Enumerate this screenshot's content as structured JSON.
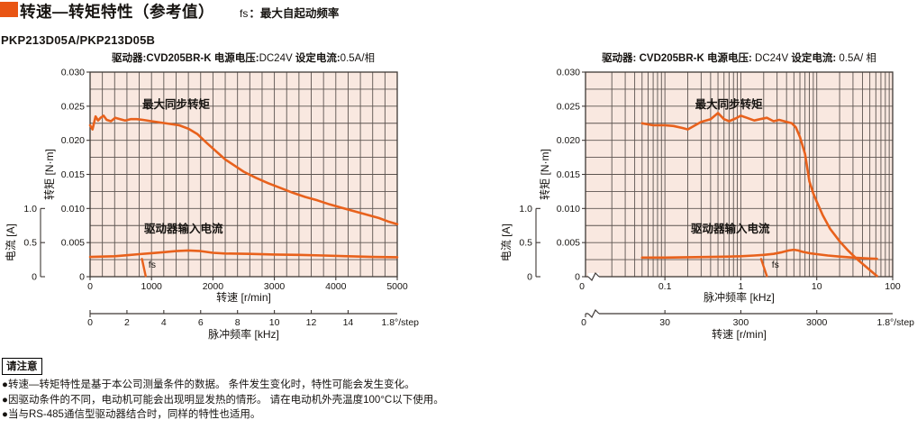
{
  "page": {
    "title": "转速—转矩特性（参考值）",
    "fs_abbr": "fs",
    "fs_note": "：最大自起动频率",
    "subtitle": "PKP213D05A/PKP213D05B",
    "accent_color": "#e95514",
    "curve_color": "#e8611c",
    "plot_bg": "#f9e8e0"
  },
  "notes": {
    "box_label": "请注意",
    "items": [
      "●转速—转矩特性是基于本公司测量条件的数据。 条件发生变化时，特性可能会发生变化。",
      "●因驱动条件的不同，电动机可能会出现明显发热的情形。 请在电动机外壳温度100°C以下使用。",
      "●当与RS-485通信型驱动器结合时，同样的特性也适用。"
    ]
  },
  "chart_data": [
    {
      "type": "line",
      "header": {
        "driver_label": "驱动器:",
        "driver": "CVD205BR-K",
        "voltage_label": " 电源电压:",
        "voltage": "DC24V",
        "current_label": " 设定电流:",
        "current": "0.5A/相"
      },
      "x_axis": {
        "label": "转速 [r/min]",
        "scale": "linear",
        "min": 0,
        "max": 5000,
        "minor_step": 200,
        "ticks": [
          0,
          1000,
          2000,
          3000,
          4000,
          5000
        ],
        "tick_labels": [
          "0",
          "1000",
          "2000",
          "3000",
          "4000",
          "5000"
        ]
      },
      "x2_axis": {
        "label": "脉冲频率 [kHz]",
        "ticks": [
          0,
          2,
          4,
          6,
          8,
          10,
          12,
          14
        ],
        "tick_labels": [
          "0",
          "2",
          "4",
          "6",
          "8",
          "10",
          "12",
          "14"
        ],
        "unit_note": "1.8°/step",
        "to_primary_factor": 300
      },
      "y_axis": {
        "label": "转矩 [N·m]",
        "min": 0,
        "max": 0.03,
        "minor_step": 0.0025,
        "ticks": [
          0,
          0.005,
          0.01,
          0.015,
          0.02,
          0.025,
          0.03
        ],
        "tick_labels": [
          "0",
          "0.005",
          "0.010",
          "0.015",
          "0.020",
          "0.025",
          "0.030"
        ]
      },
      "y2_axis": {
        "label": "电流 [A]",
        "max": 1.0,
        "maps_to_torque": 0.01,
        "ticks": [
          0,
          0.5,
          1.0
        ],
        "tick_labels": [
          "0",
          "0.5",
          "1.0"
        ]
      },
      "series": [
        {
          "name": "最大同步转矩",
          "axis": "y",
          "label_at": {
            "x": 850,
            "y": 0.0247
          },
          "x": [
            0,
            40,
            90,
            130,
            170,
            220,
            270,
            340,
            410,
            490,
            570,
            660,
            760,
            860,
            1000,
            1150,
            1300,
            1450,
            1600,
            1750,
            1900,
            2050,
            2200,
            2350,
            2500,
            2700,
            2900,
            3100,
            3300,
            3500,
            3700,
            3900,
            4100,
            4300,
            4500,
            4700,
            4850,
            5000
          ],
          "y": [
            0.0222,
            0.0216,
            0.0235,
            0.0229,
            0.0233,
            0.0236,
            0.023,
            0.0228,
            0.0233,
            0.0231,
            0.0229,
            0.0231,
            0.0231,
            0.023,
            0.0228,
            0.0226,
            0.0224,
            0.0222,
            0.0217,
            0.0209,
            0.0196,
            0.0184,
            0.0172,
            0.0163,
            0.0154,
            0.0145,
            0.0137,
            0.013,
            0.0123,
            0.0117,
            0.0112,
            0.0106,
            0.0101,
            0.0096,
            0.0091,
            0.0086,
            0.0081,
            0.0077
          ]
        },
        {
          "name": "驱动器输入电流",
          "axis": "y2",
          "label_at": {
            "x": 880,
            "y": 0.0065
          },
          "x": [
            0,
            200,
            400,
            600,
            800,
            1000,
            1200,
            1400,
            1600,
            1800,
            2000,
            2200,
            2600,
            3000,
            3400,
            3800,
            4200,
            4600,
            5000
          ],
          "y": [
            0.29,
            0.295,
            0.3,
            0.315,
            0.33,
            0.345,
            0.36,
            0.375,
            0.385,
            0.375,
            0.35,
            0.34,
            0.335,
            0.325,
            0.32,
            0.31,
            0.3,
            0.29,
            0.285
          ]
        }
      ],
      "fs_marker": {
        "label": "fs",
        "line": {
          "x": [
            845,
            905
          ],
          "y": [
            0.0026,
            0.0001
          ]
        },
        "label_at": {
          "x": 950,
          "y": 0.0013
        }
      }
    },
    {
      "type": "line",
      "header": {
        "driver_label": "驱动器: ",
        "driver": "CVD205BR-K",
        "voltage_label": " 电源电压: ",
        "voltage": "DC24V",
        "current_label": " 设定电流: ",
        "current": "0.5A/ 相"
      },
      "x_axis": {
        "label": "脉冲频率 [kHz]",
        "scale": "log",
        "min": 0.009,
        "max": 100,
        "grid_min": 0.02,
        "ticks": [
          0.1,
          1,
          10,
          100
        ],
        "tick_labels": [
          "0.1",
          "1",
          "10",
          "100"
        ],
        "zero_label": "0",
        "axis_break": true
      },
      "x2_axis": {
        "label": "转速 [r/min]",
        "ticks": [
          30,
          300,
          3000
        ],
        "tick_labels": [
          "30",
          "300",
          "3000"
        ],
        "zero_label": "0",
        "axis_break": true,
        "unit_note": "1.8°/step",
        "to_primary_factor": 0.0033333333
      },
      "y_axis": {
        "label": "转矩 [N·m]",
        "min": 0,
        "max": 0.03,
        "minor_step": 0.0025,
        "ticks": [
          0,
          0.005,
          0.01,
          0.015,
          0.02,
          0.025,
          0.03
        ],
        "tick_labels": [
          "0",
          "0.005",
          "0.010",
          "0.015",
          "0.020",
          "0.025",
          "0.030"
        ]
      },
      "y2_axis": {
        "label": "电流 [A]",
        "max": 1.0,
        "maps_to_torque": 0.01,
        "ticks": [
          0,
          0.5,
          1.0
        ],
        "tick_labels": [
          "0",
          "0.5",
          "1.0"
        ]
      },
      "series": [
        {
          "name": "最大同步转矩",
          "axis": "y",
          "label_at": {
            "x": 0.25,
            "y": 0.0247
          },
          "x": [
            0.05,
            0.07,
            0.1,
            0.13,
            0.17,
            0.2,
            0.25,
            0.3,
            0.4,
            0.5,
            0.6,
            0.7,
            0.85,
            1.0,
            1.2,
            1.5,
            1.8,
            2.2,
            2.7,
            3.2,
            4.0,
            4.7,
            5.3,
            6.0,
            7.0,
            8.0,
            9.0,
            10,
            12,
            15,
            20,
            26,
            33,
            42,
            52,
            62
          ],
          "y": [
            0.0225,
            0.0222,
            0.0222,
            0.0221,
            0.0218,
            0.0216,
            0.0222,
            0.0227,
            0.0231,
            0.024,
            0.0231,
            0.0228,
            0.0232,
            0.0236,
            0.0233,
            0.0229,
            0.0231,
            0.0233,
            0.0228,
            0.023,
            0.0227,
            0.0225,
            0.0219,
            0.0205,
            0.018,
            0.014,
            0.0122,
            0.011,
            0.009,
            0.007,
            0.0052,
            0.0038,
            0.0027,
            0.0017,
            0.0008,
            0.0001
          ]
        },
        {
          "name": "驱动器输入电流",
          "axis": "y2",
          "label_at": {
            "x": 0.22,
            "y": 0.0065
          },
          "x": [
            0.05,
            0.1,
            0.2,
            0.4,
            0.7,
            1.0,
            1.5,
            2.0,
            2.7,
            3.5,
            4.3,
            5.0,
            5.7,
            6.5,
            8.0,
            10,
            14,
            20,
            30,
            45,
            62
          ],
          "y": [
            0.28,
            0.28,
            0.285,
            0.29,
            0.295,
            0.3,
            0.31,
            0.32,
            0.335,
            0.36,
            0.385,
            0.395,
            0.385,
            0.365,
            0.345,
            0.33,
            0.31,
            0.295,
            0.28,
            0.268,
            0.262
          ]
        }
      ],
      "fs_marker": {
        "label": "fs",
        "line": {
          "x": [
            1.85,
            2.2
          ],
          "y": [
            0.0026,
            0.0001
          ]
        },
        "label_at": {
          "x": 2.55,
          "y": 0.0013
        }
      }
    }
  ]
}
